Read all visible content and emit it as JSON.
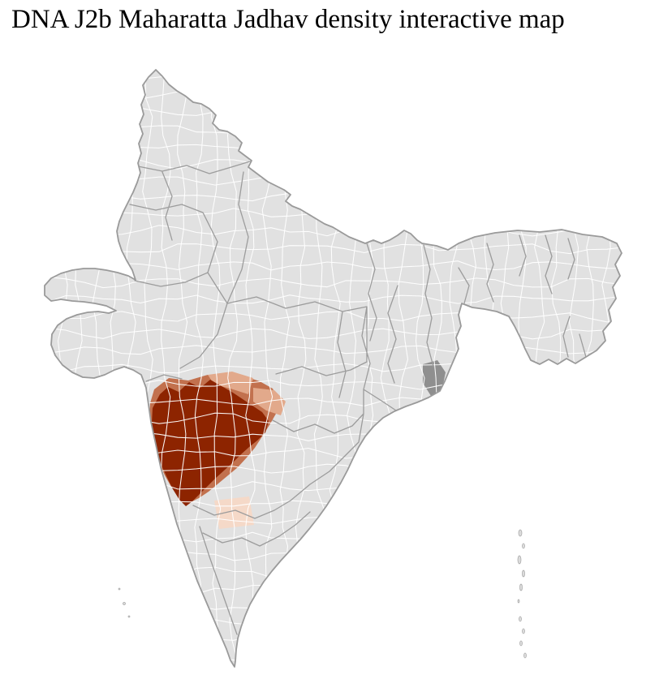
{
  "title": "DNA J2b Maharatta Jadhav density interactive map",
  "map": {
    "name": "India district-level density choropleth",
    "highlight_region": "Maharashtra",
    "colors": {
      "land": "#e1e1e1",
      "district_border": "#ffffff",
      "state_border": "#9c9c9c",
      "outline": "#9a9a9a",
      "density_high": "#8d2400",
      "density_medium": "#c2714e",
      "density_low": "#e2a98b",
      "density_very_low": "#f5d9c8",
      "shaded_district": "#8f8f8f",
      "island_fill": "#dcdcdc",
      "island_stroke": "#a5a5a5"
    }
  }
}
